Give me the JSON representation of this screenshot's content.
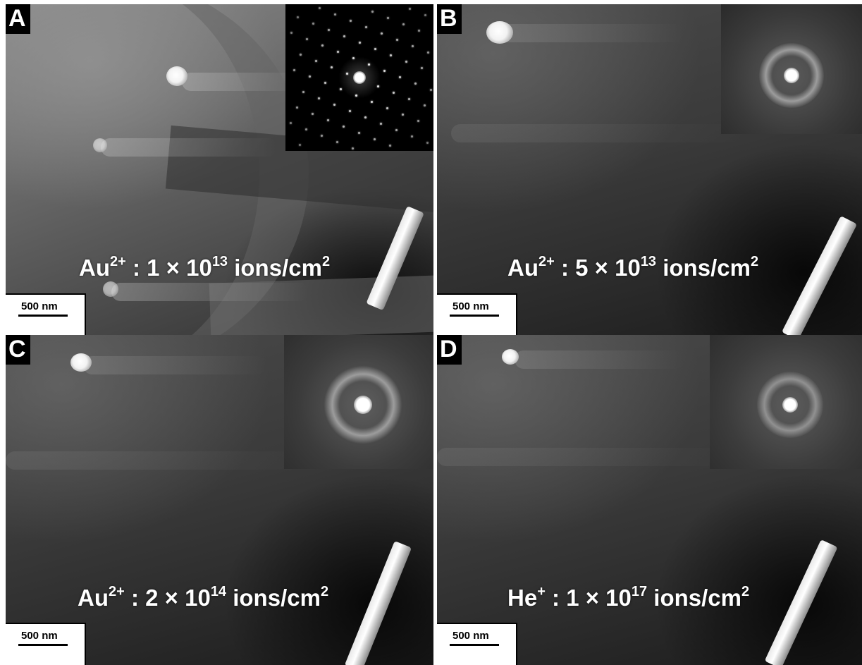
{
  "panels": [
    {
      "id": "A",
      "letter": "A",
      "ion": "Au",
      "charge": "2+",
      "dose_text": " : 1 × 10",
      "dose_exponent": "13",
      "unit": " ions/cm",
      "unit_exponent": "2",
      "scale_bar": "500 nm",
      "diffraction_pattern": "spot-pattern"
    },
    {
      "id": "B",
      "letter": "B",
      "ion": "Au",
      "charge": "2+",
      "dose_text": " : 5 × 10",
      "dose_exponent": "13",
      "unit": " ions/cm",
      "unit_exponent": "2",
      "scale_bar": "500 nm",
      "diffraction_pattern": "diffuse-ring"
    },
    {
      "id": "C",
      "letter": "C",
      "ion": "Au",
      "charge": "2+",
      "dose_text": " : 2 × 10",
      "dose_exponent": "14",
      "unit": " ions/cm",
      "unit_exponent": "2",
      "scale_bar": "500 nm",
      "diffraction_pattern": "diffuse-ring"
    },
    {
      "id": "D",
      "letter": "D",
      "ion": "He",
      "charge": "+",
      "dose_text": " : 1 × 10",
      "dose_exponent": "17",
      "unit": " ions/cm",
      "unit_exponent": "2",
      "scale_bar": "500 nm",
      "diffraction_pattern": "diffuse-ring"
    }
  ],
  "colors": {
    "background": "#ffffff",
    "label_box": "#000000",
    "label_text": "#ffffff",
    "scalebar_box": "#ffffff",
    "scalebar_text": "#000000"
  }
}
